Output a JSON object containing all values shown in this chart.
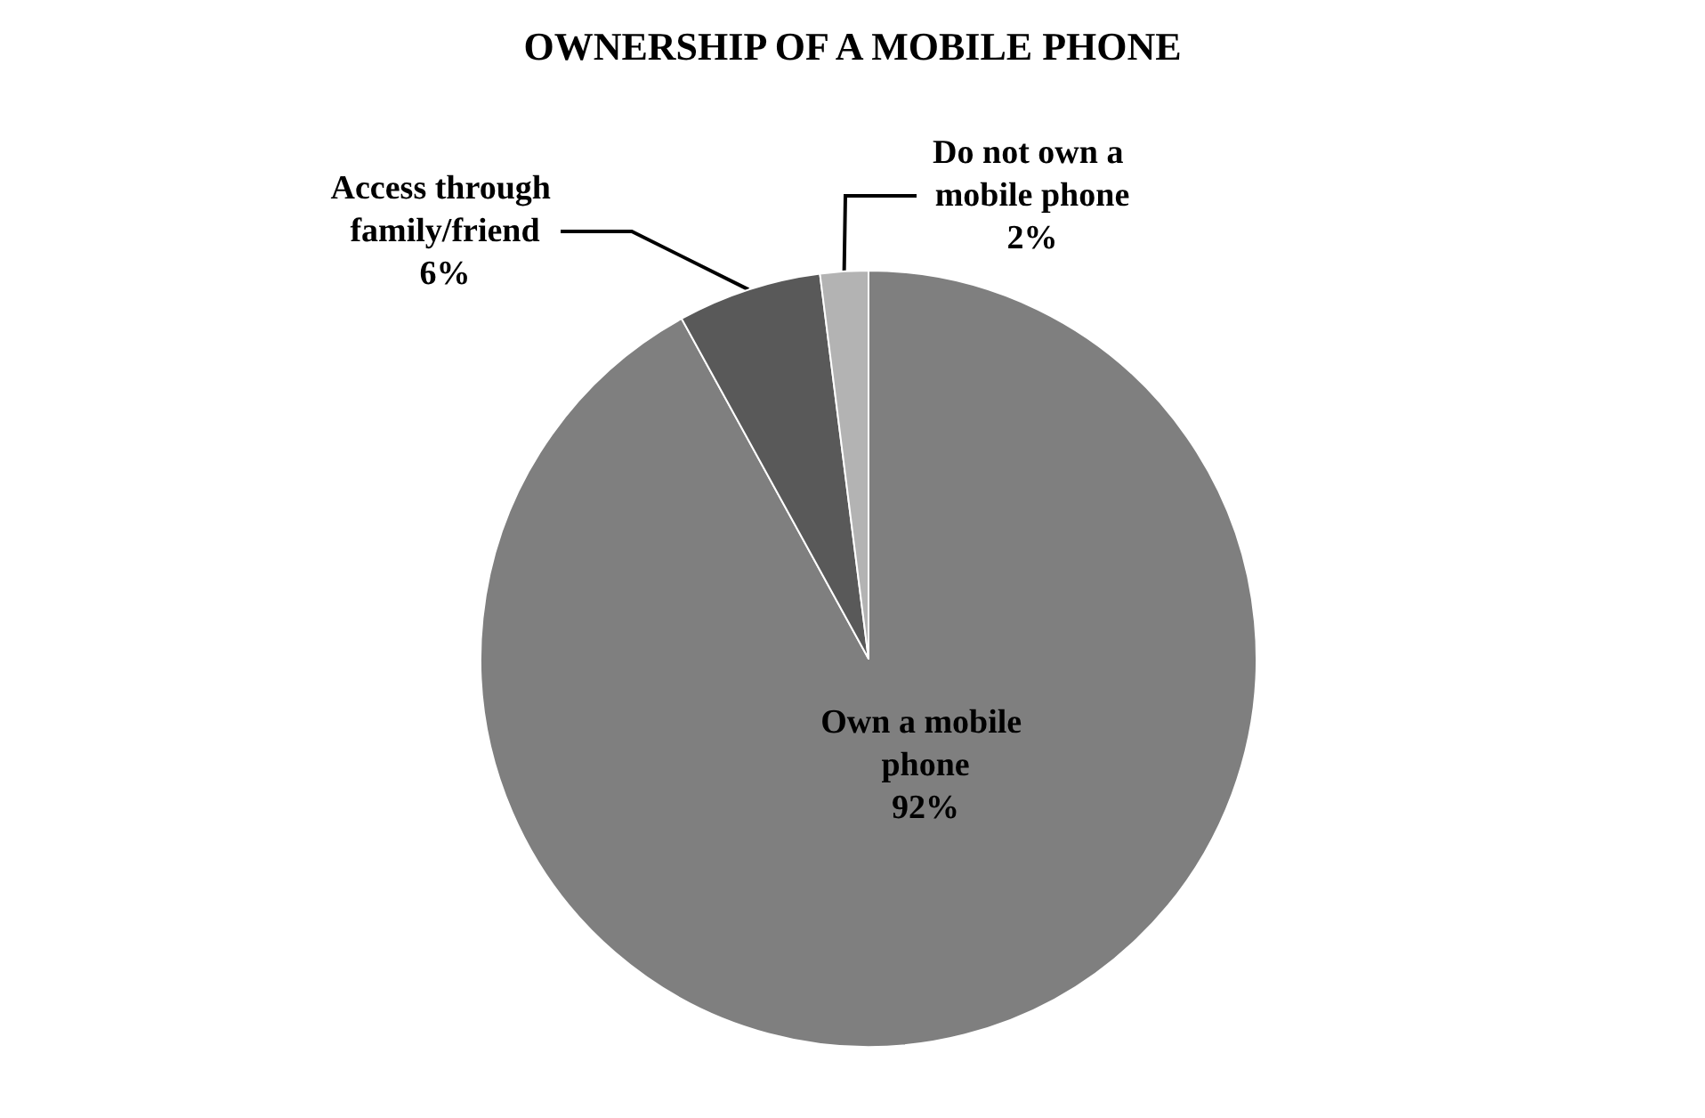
{
  "chart_data": {
    "type": "pie",
    "title": "OWNERSHIP OF A MOBILE PHONE",
    "categories": [
      "Own a mobile phone",
      "Access through family/friend",
      "Do not own a mobile phone"
    ],
    "values": [
      92,
      6,
      2
    ],
    "value_labels": [
      "92%",
      "6%",
      "2%"
    ],
    "colors": [
      "#7f7f7f",
      "#595959",
      "#b3b3b3"
    ],
    "legend": false
  }
}
